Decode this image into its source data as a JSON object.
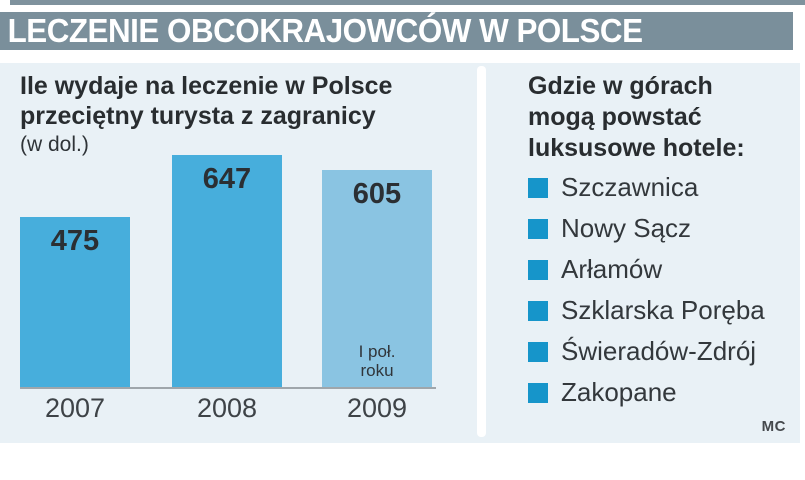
{
  "header": {
    "title": "LECZENIE OBCOKRAJOWCÓW W POLSCE"
  },
  "chart_data": {
    "type": "bar",
    "title": "Ile wydaje na leczenie w Polsce przeciętny turysta z zagranicy",
    "title_lines": [
      "Ile wydaje na leczenie w Polsce",
      "przeciętny turysta z zagranicy"
    ],
    "unit_label": "(w dol.)",
    "categories": [
      "2007",
      "2008",
      "2009"
    ],
    "values": [
      475,
      647,
      605
    ],
    "bar_colors": [
      "#47aedc",
      "#47aedc",
      "#8ac4e2"
    ],
    "note": {
      "bar_index": 2,
      "lines": [
        "I poł.",
        "roku"
      ]
    },
    "ylim": [
      0,
      647
    ],
    "grid": false,
    "legend": false
  },
  "right_panel": {
    "title_lines": [
      "Gdzie w górach",
      "mogą powstać",
      "luksusowe hotele:"
    ],
    "bullet_color": "#1695ca",
    "items": [
      "Szczawnica",
      "Nowy Sącz",
      "Arłamów",
      "Szklarska Poręba",
      "Świeradów-Zdrój",
      "Zakopane"
    ]
  },
  "credit": "MC",
  "colors": {
    "header_bg": "#7a8f9b",
    "panel_bg": "#e9f1f6",
    "bar_main": "#47aedc",
    "bar_light": "#8ac4e2",
    "bullet": "#1695ca"
  }
}
